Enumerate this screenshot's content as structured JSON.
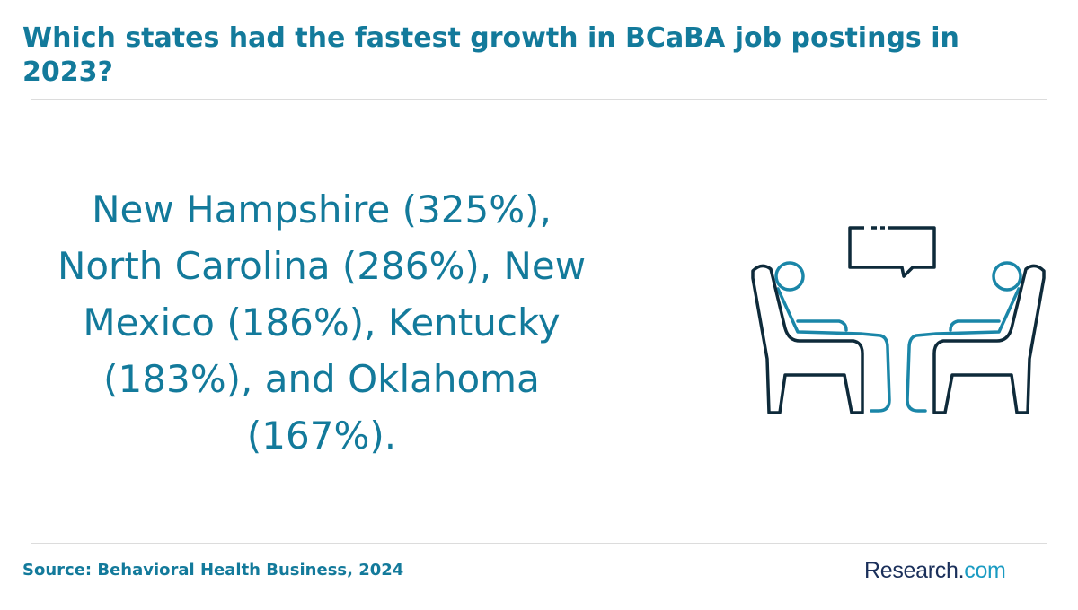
{
  "header": {
    "title": "Which states had the fastest growth in BCaBA job postings in 2023?"
  },
  "main": {
    "statement": "New Hampshire (325%), North Carolina (286%), New Mexico (186%), Kentucky (183%), and Oklahoma (167%).",
    "illustration_icon": "therapy-session-icon"
  },
  "footer": {
    "source": "Source: Behavioral Health Business, 2024",
    "brand_part1": "Research.",
    "brand_part2": "com"
  },
  "colors": {
    "accent": "#137a9b",
    "icon_dark": "#0e2a3a",
    "icon_accent": "#1a86a8",
    "brand_dark": "#1a2f5a",
    "brand_light": "#1a9bc2"
  }
}
